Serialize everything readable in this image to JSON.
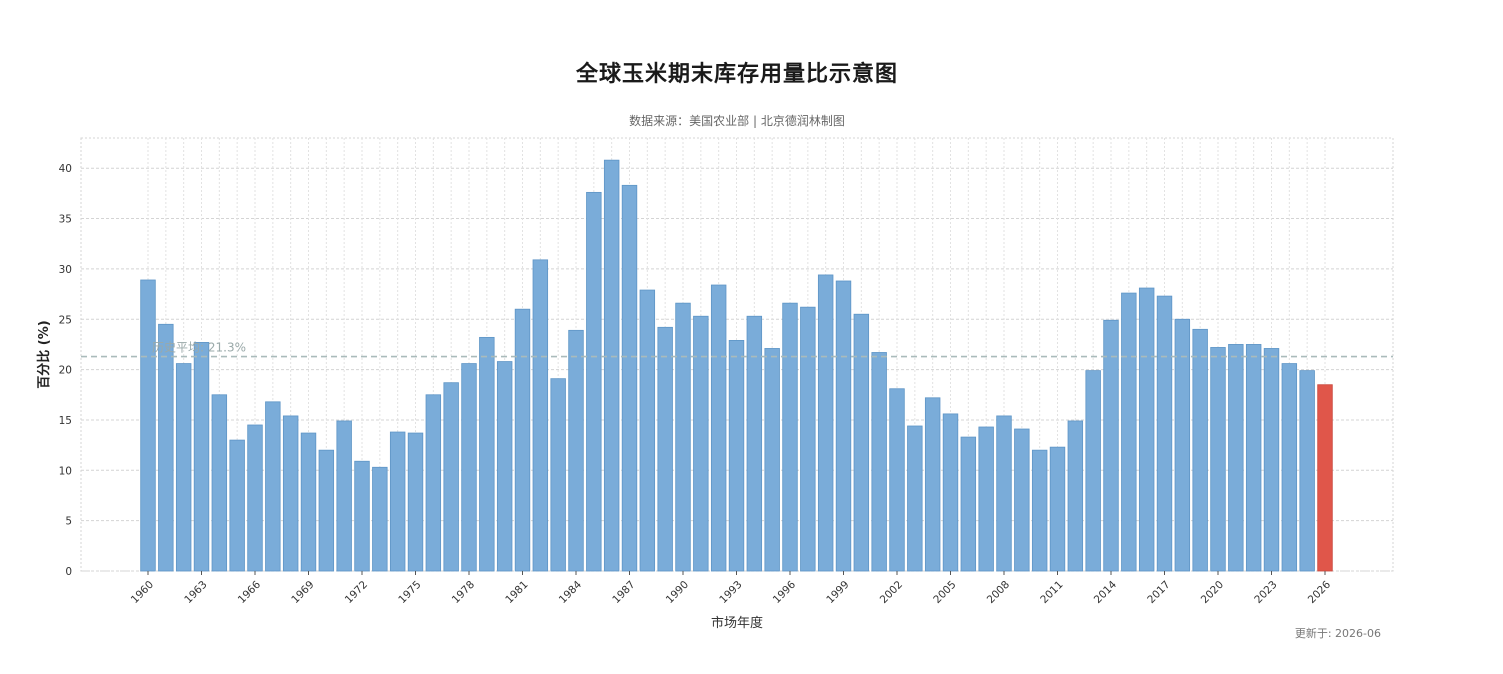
{
  "header": {
    "title": "全球玉米期末库存用量比示意图",
    "subtitle": "数据来源：美国农业部 | 北京德润林制图"
  },
  "footer": {
    "updated": "更新于: 2026-06"
  },
  "colors": {
    "bar": "#7aacd9",
    "highlight": "#e0564a",
    "mean_line": "#aabbbb",
    "grid": "#d4d4d4"
  },
  "chart_data": {
    "type": "bar",
    "title": "全球玉米期末库存用量比示意图",
    "subtitle": "数据来源：美国农业部 | 北京德润林制图",
    "xlabel": "市场年度",
    "ylabel": "百分比 (%)",
    "ylim": [
      0,
      43
    ],
    "yticks": [
      0,
      5,
      10,
      15,
      20,
      25,
      30,
      35,
      40
    ],
    "xtick_labels": [
      "1960",
      "1963",
      "1966",
      "1969",
      "1972",
      "1975",
      "1978",
      "1981",
      "1984",
      "1987",
      "1990",
      "1993",
      "1996",
      "1999",
      "2002",
      "2005",
      "2008",
      "2011",
      "2014",
      "2017",
      "2020",
      "2023",
      "2026"
    ],
    "grid": true,
    "mean_line": {
      "value": 21.3,
      "label": "历史平均: 21.3%"
    },
    "highlight_category": "2026",
    "categories": [
      "1960",
      "1961",
      "1962",
      "1963",
      "1964",
      "1965",
      "1966",
      "1967",
      "1968",
      "1969",
      "1970",
      "1971",
      "1972",
      "1973",
      "1974",
      "1975",
      "1976",
      "1977",
      "1978",
      "1979",
      "1980",
      "1981",
      "1982",
      "1983",
      "1984",
      "1985",
      "1986",
      "1987",
      "1988",
      "1989",
      "1990",
      "1991",
      "1992",
      "1993",
      "1994",
      "1995",
      "1996",
      "1997",
      "1998",
      "1999",
      "2000",
      "2001",
      "2002",
      "2003",
      "2004",
      "2005",
      "2006",
      "2007",
      "2008",
      "2009",
      "2010",
      "2011",
      "2012",
      "2013",
      "2014",
      "2015",
      "2016",
      "2017",
      "2018",
      "2019",
      "2020",
      "2021",
      "2022",
      "2023",
      "2024",
      "2025",
      "2026"
    ],
    "values": [
      28.9,
      24.5,
      20.6,
      22.7,
      17.5,
      13.0,
      14.5,
      16.8,
      15.4,
      13.7,
      12.0,
      14.9,
      10.9,
      10.3,
      13.8,
      13.7,
      17.5,
      18.7,
      20.6,
      23.2,
      20.8,
      26.0,
      30.9,
      19.1,
      23.9,
      37.6,
      40.8,
      38.3,
      27.9,
      24.2,
      26.6,
      25.3,
      28.4,
      22.9,
      25.3,
      22.1,
      26.6,
      26.2,
      29.4,
      28.8,
      25.5,
      21.7,
      18.1,
      14.4,
      17.2,
      15.6,
      13.3,
      14.3,
      15.4,
      14.1,
      12.0,
      12.3,
      14.9,
      19.9,
      24.9,
      27.6,
      28.1,
      27.3,
      25.0,
      24.0,
      22.2,
      22.5,
      22.5,
      22.1,
      20.6,
      19.9,
      18.5
    ]
  }
}
